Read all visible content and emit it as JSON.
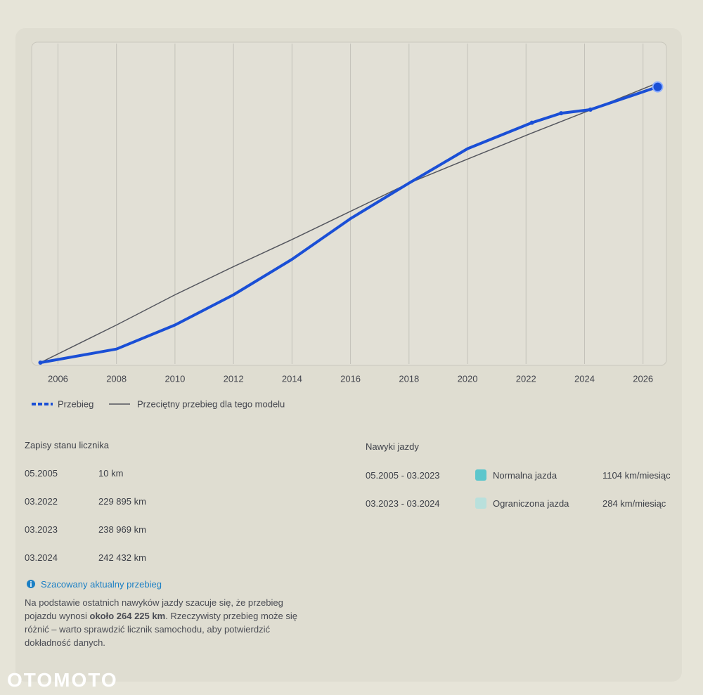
{
  "chart_data": {
    "type": "line",
    "x": [
      2005.4,
      2008,
      2010,
      2012,
      2014,
      2016,
      2018,
      2020,
      2022.2,
      2023.2,
      2024.2,
      2026.5
    ],
    "series": [
      {
        "name": "Przebieg",
        "color": "#1a4fd6",
        "values": [
          10,
          13000,
          36000,
          65000,
          99000,
          138000,
          172000,
          205000,
          229895,
          238969,
          242432,
          264225
        ]
      },
      {
        "name": "Przeciętny przebieg dla tego modelu",
        "color": "#55575f",
        "values": [
          0,
          36000,
          65000,
          92000,
          118000,
          145000,
          172000,
          195000,
          220000,
          231000,
          242000,
          268000
        ]
      }
    ],
    "xlim": [
      2005.1,
      2026.8
    ],
    "xticks": [
      2006,
      2008,
      2010,
      2012,
      2014,
      2016,
      2018,
      2020,
      2022,
      2024,
      2026
    ],
    "grid": true,
    "legend": "bottom"
  },
  "records": {
    "title": "Zapisy stanu licznika",
    "rows": [
      [
        "05.2005",
        "10 km"
      ],
      [
        "03.2022",
        "229 895 km"
      ],
      [
        "03.2023",
        "238 969 km"
      ],
      [
        "03.2024",
        "242 432 km"
      ]
    ]
  },
  "habits": {
    "title": "Nawyki jazdy",
    "rows": [
      {
        "period": "05.2005 - 03.2023",
        "color": "#5cc6cc",
        "label": "Normalna jazda",
        "rate": "1104 km/miesiąc"
      },
      {
        "period": "03.2023 - 03.2024",
        "color": "#b9e0dc",
        "label": "Ograniczona jazda",
        "rate": "284 km/miesiąc"
      }
    ]
  },
  "estimate": {
    "title": "Szacowany aktualny przebieg",
    "text_before": "Na podstawie ostatnich nawyków jazdy szacuje się, że przebieg pojazdu wynosi ",
    "bold": "około 264 225 km",
    "text_after": ". Rzeczywisty przebieg może się różnić – warto sprawdzić licznik samochodu, aby potwierdzić dokładność danych."
  },
  "footer": {
    "logo": "OTOMOTO"
  }
}
